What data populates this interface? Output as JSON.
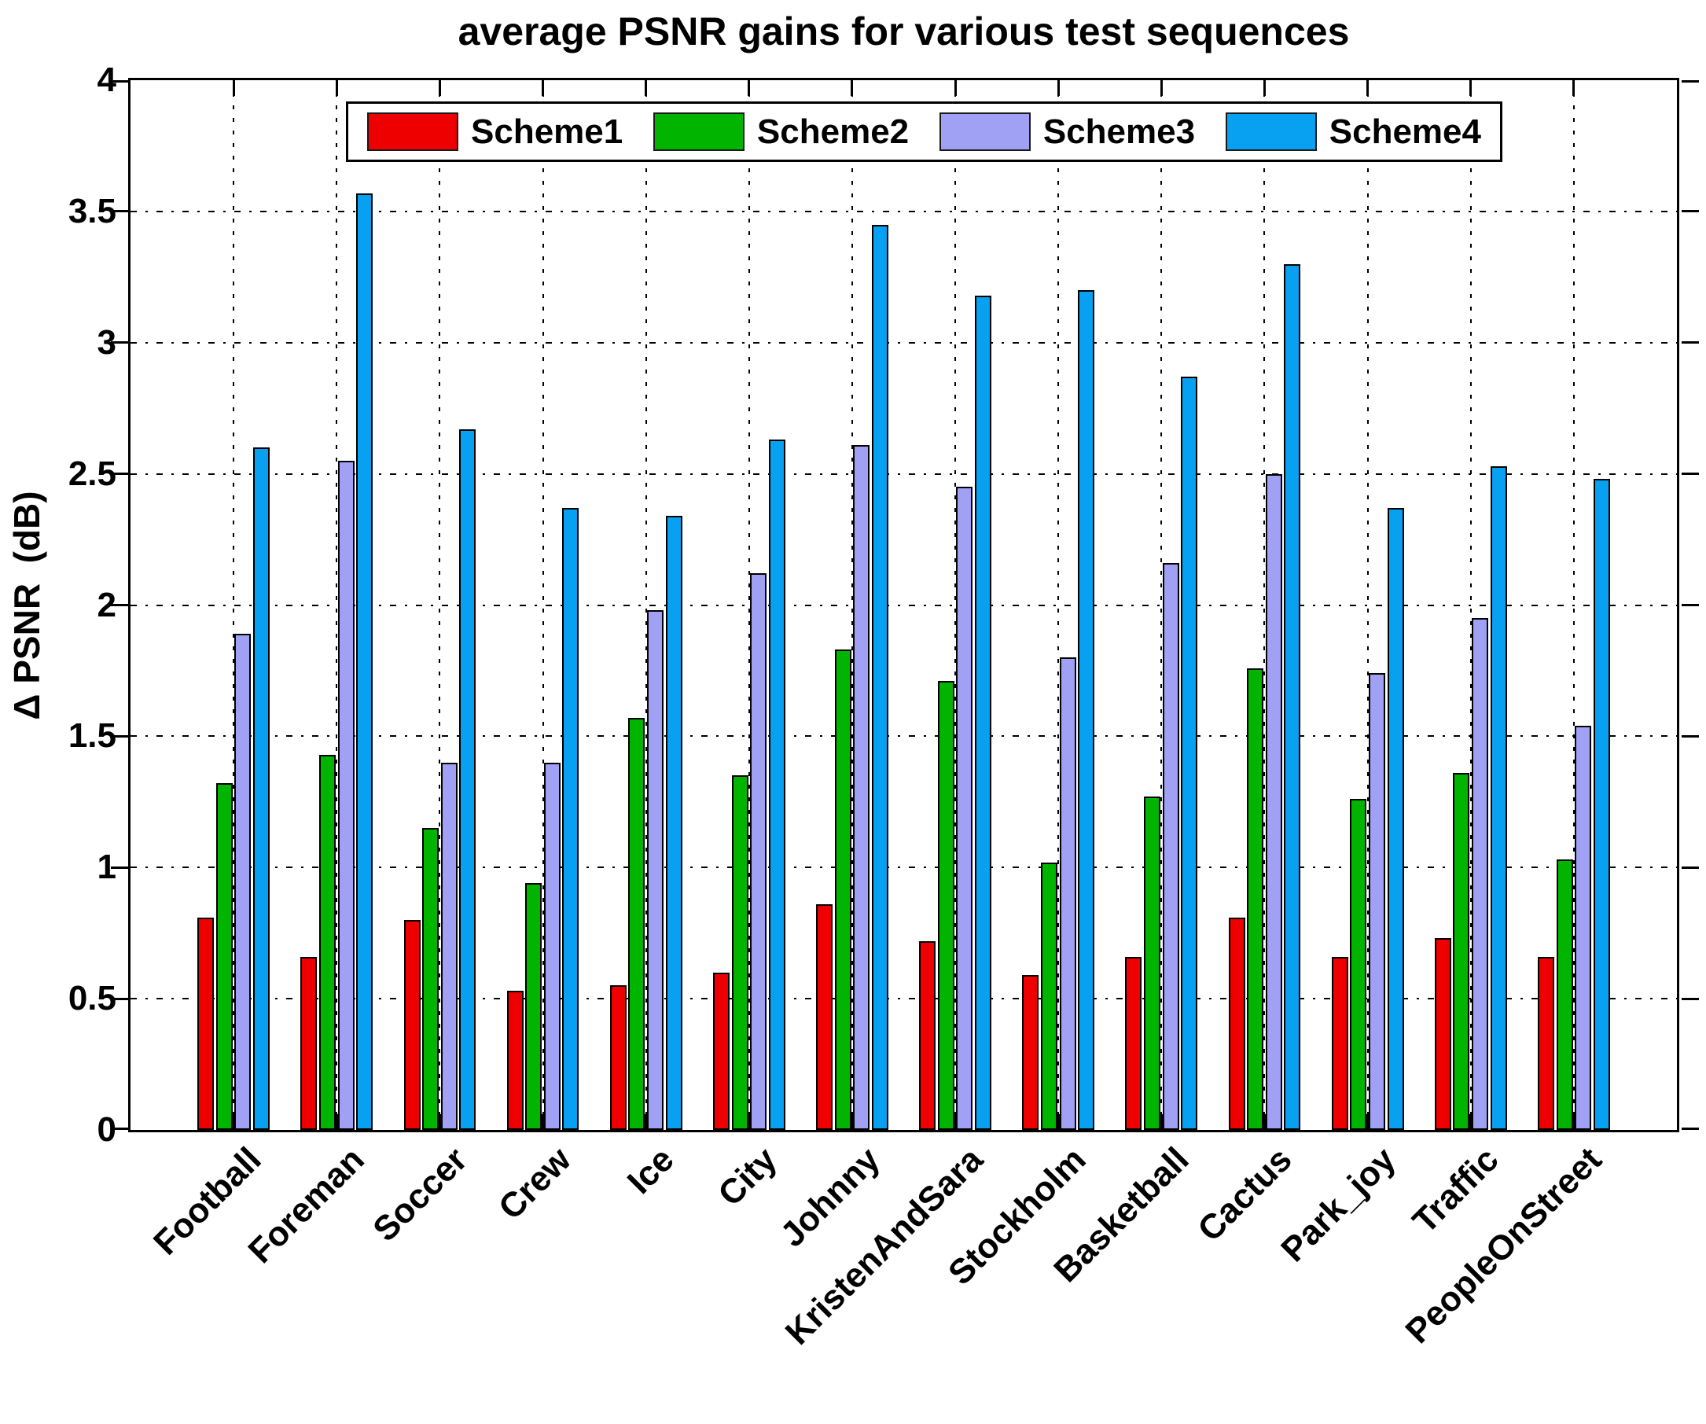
{
  "title": "average PSNR gains for various test sequences",
  "y_axis": {
    "label": "Δ PSNR  (dB)",
    "tick_labels": [
      "0",
      "0.5",
      "1",
      "1.5",
      "2",
      "2.5",
      "3",
      "3.5",
      "4"
    ]
  },
  "legend": {
    "entries": [
      "Scheme1",
      "Scheme2",
      "Scheme3",
      "Scheme4"
    ]
  },
  "chart_data": {
    "type": "bar",
    "title": "average PSNR gains for various test sequences",
    "xlabel": "",
    "ylabel": "Δ PSNR  (dB)",
    "ylim": [
      0,
      4
    ],
    "yticks": [
      0,
      0.5,
      1,
      1.5,
      2,
      2.5,
      3,
      3.5,
      4
    ],
    "grid": true,
    "legend_position": "top-inside",
    "categories": [
      "Football",
      "Foreman",
      "Soccer",
      "Crew",
      "Ice",
      "City",
      "Johnny",
      "KristenAndSara",
      "Stockholm",
      "Basketball",
      "Cactus",
      "Park_joy",
      "Traffic",
      "PeopleOnStreet"
    ],
    "series": [
      {
        "name": "Scheme1",
        "color": "#ee0000",
        "values": [
          0.81,
          0.66,
          0.8,
          0.53,
          0.55,
          0.6,
          0.86,
          0.72,
          0.59,
          0.66,
          0.81,
          0.66,
          0.73,
          0.66
        ]
      },
      {
        "name": "Scheme2",
        "color": "#00b400",
        "values": [
          1.32,
          1.43,
          1.15,
          0.94,
          1.57,
          1.35,
          1.83,
          1.71,
          1.02,
          1.27,
          1.76,
          1.26,
          1.36,
          1.03
        ]
      },
      {
        "name": "Scheme3",
        "color": "#a0a0f4",
        "values": [
          1.89,
          2.55,
          1.4,
          1.4,
          1.98,
          2.12,
          2.61,
          2.45,
          1.8,
          2.16,
          2.5,
          1.74,
          1.95,
          1.54
        ]
      },
      {
        "name": "Scheme4",
        "color": "#08a0f0",
        "values": [
          2.6,
          3.57,
          2.67,
          2.37,
          2.34,
          2.63,
          3.45,
          3.18,
          3.2,
          2.87,
          3.3,
          2.37,
          2.53,
          2.48
        ]
      }
    ]
  }
}
